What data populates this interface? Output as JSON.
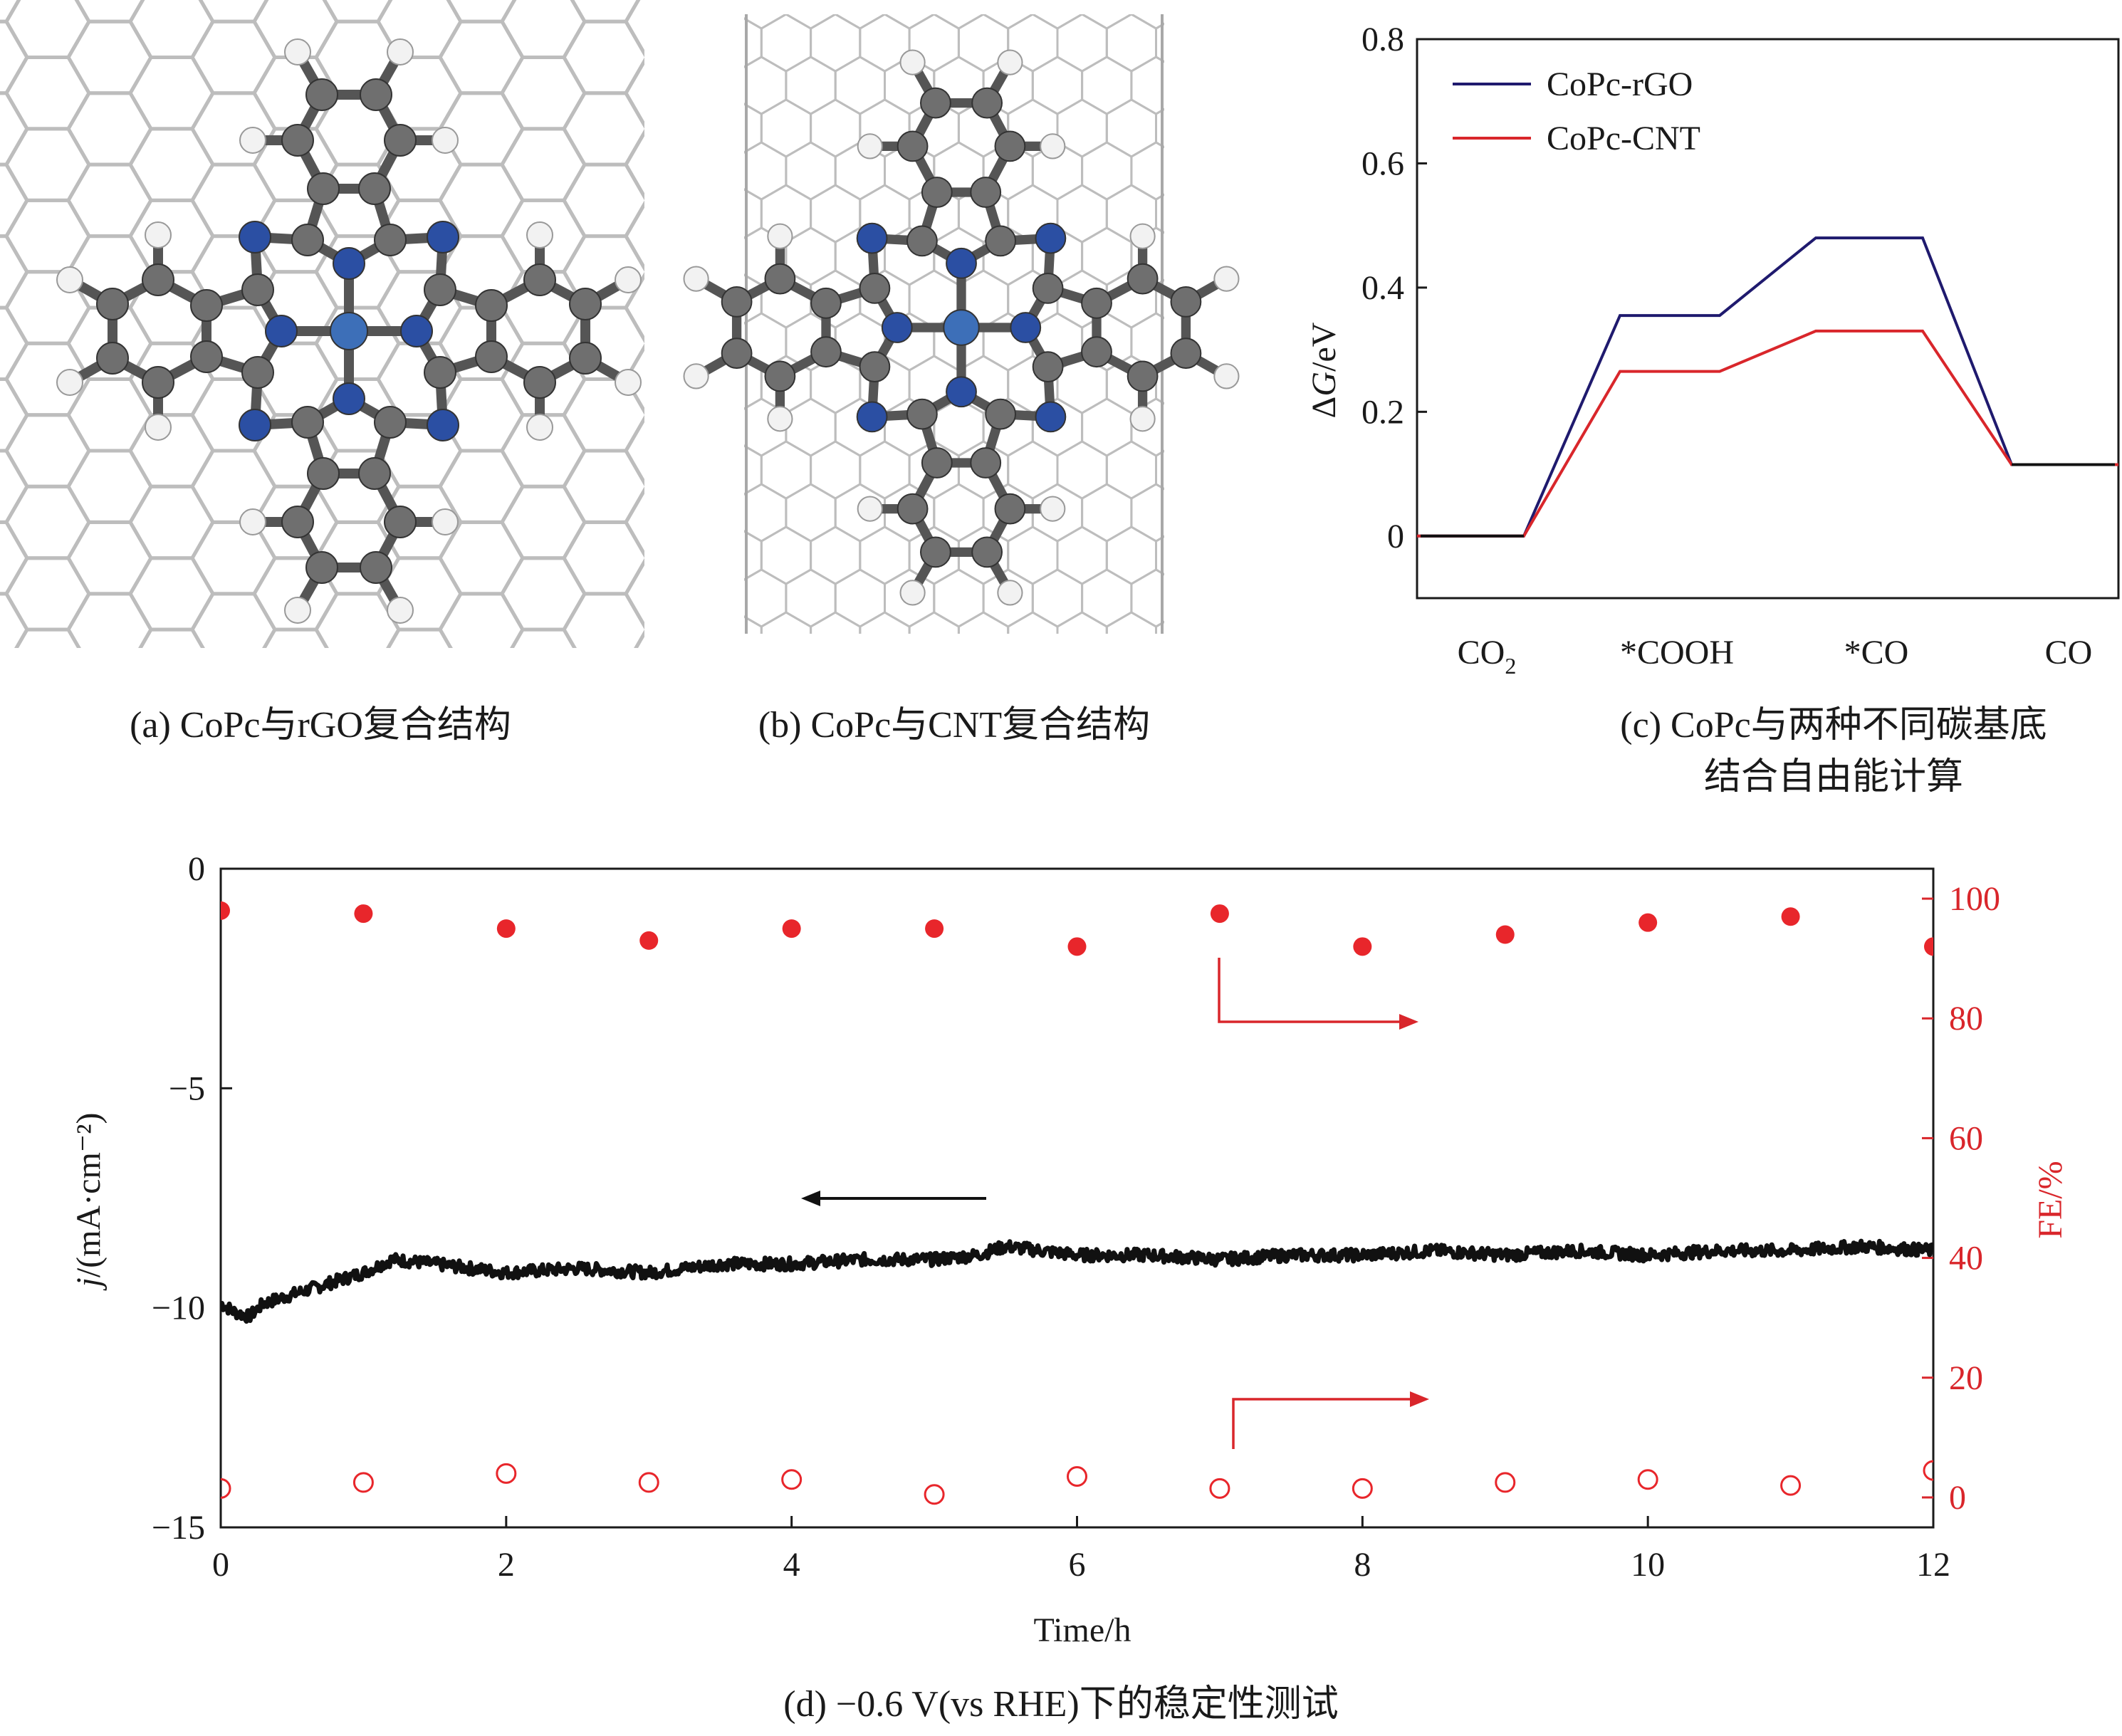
{
  "panel_a": {
    "caption": "(a) CoPc与rGO复合结构",
    "substrate": "graphene-hexagonal-lattice",
    "molecule": "cobalt-phthalocyanine",
    "colors": {
      "lattice": "#bdbdbd",
      "carbon": "#6f6f6f",
      "nitrogen": "#2b4fa3",
      "cobalt": "#3d6fb8",
      "hydrogen": "#f2f2f2"
    }
  },
  "panel_b": {
    "caption": "(b) CoPc与CNT复合结构",
    "substrate": "carbon-nanotube-lattice",
    "molecule": "cobalt-phthalocyanine"
  },
  "panel_c": {
    "caption_line1": "(c) CoPc与两种不同碳基底",
    "caption_line2": "结合自由能计算",
    "ylabel_prefix": "Δ",
    "ylabel_italic": "G",
    "ylabel_suffix": "/eV",
    "yticks": [
      "0.8",
      "0.6",
      "0.4",
      "0.2",
      "0"
    ],
    "xcat": [
      "CO",
      "*COOH",
      "*CO",
      "CO"
    ],
    "xcat_sub": "2"
  },
  "panel_d": {
    "caption": "(d) −0.6 V(vs RHE)下的稳定性测试",
    "xlabel": "Time/h",
    "ylabel_left_italic": "j",
    "ylabel_left_rest": "/(mA·cm⁻²)",
    "ylabel_right": "FE/%",
    "xticks": [
      "0",
      "2",
      "4",
      "6",
      "8",
      "10",
      "12"
    ],
    "yticks_left": [
      "0",
      "−5",
      "−10",
      "−15"
    ],
    "yticks_right": [
      "100",
      "80",
      "60",
      "40",
      "20",
      "0"
    ]
  },
  "chart_data": [
    {
      "type": "line",
      "panel": "c",
      "xlabel": "",
      "ylabel": "ΔG/eV",
      "ylim": [
        -0.1,
        0.8
      ],
      "categories": [
        "CO2",
        "*COOH",
        "*CO",
        "CO"
      ],
      "legend_position": "top-left",
      "series": [
        {
          "name": "CoPc-rGO",
          "color": "#1f1a6e",
          "values": [
            0,
            0.355,
            0.48,
            0.115
          ]
        },
        {
          "name": "CoPc-CNT",
          "color": "#d9262b",
          "values": [
            0,
            0.265,
            0.33,
            0.115
          ]
        }
      ]
    },
    {
      "type": "line",
      "panel": "d-left",
      "xlabel": "Time/h",
      "ylabel": "j/(mA·cm⁻²)",
      "xlim": [
        0,
        12
      ],
      "ylim": [
        -15,
        0
      ],
      "series": [
        {
          "name": "",
          "color": "#111111",
          "x": [
            0,
            0.1,
            0.2,
            0.3,
            0.5,
            0.8,
            1.0,
            1.2,
            1.5,
            2.0,
            2.5,
            3.0,
            3.5,
            4.0,
            4.5,
            5.0,
            5.3,
            5.5,
            6.0,
            6.5,
            7.0,
            7.5,
            8.0,
            8.5,
            9.0,
            9.5,
            10.0,
            10.5,
            11.0,
            11.5,
            12.0
          ],
          "y": [
            -9.9,
            -10.1,
            -10.2,
            -9.9,
            -9.7,
            -9.4,
            -9.2,
            -8.9,
            -9.0,
            -9.2,
            -9.1,
            -9.2,
            -9.0,
            -9.0,
            -8.9,
            -8.9,
            -8.8,
            -8.6,
            -8.8,
            -8.8,
            -8.9,
            -8.8,
            -8.8,
            -8.7,
            -8.8,
            -8.7,
            -8.8,
            -8.7,
            -8.7,
            -8.6,
            -8.7
          ]
        }
      ]
    },
    {
      "type": "scatter",
      "panel": "d-right",
      "ylabel": "FE/%",
      "xlim": [
        0,
        12
      ],
      "ylim": [
        -5,
        105
      ],
      "series": [
        {
          "name": "",
          "marker": "filled",
          "color": "#e8262b",
          "x": [
            0,
            1,
            2,
            3,
            4,
            5,
            6,
            7,
            8,
            9,
            10,
            11,
            12
          ],
          "y": [
            98,
            97.5,
            95,
            93,
            95,
            95,
            92,
            97.5,
            92,
            94,
            96,
            97,
            92
          ]
        },
        {
          "name": "",
          "marker": "open",
          "color": "#e8262b",
          "x": [
            0,
            1,
            2,
            3,
            4,
            5,
            6,
            7,
            8,
            9,
            10,
            11,
            12
          ],
          "y": [
            1.5,
            2.5,
            4,
            2.5,
            3,
            0.5,
            3.5,
            1.5,
            1.5,
            2.5,
            3,
            2,
            4.5
          ]
        }
      ]
    }
  ]
}
